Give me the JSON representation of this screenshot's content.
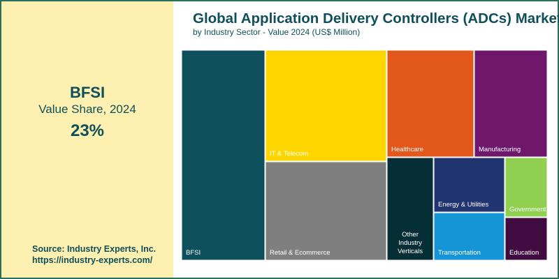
{
  "title": "Global Application Delivery Controllers (ADCs) Market",
  "subtitle": "by Industry Sector - Value 2024 (US$ Million)",
  "highlight": {
    "name": "BFSI",
    "caption": "Value Share, 2024",
    "value": "23%"
  },
  "source": {
    "line1": "Source: Industry Experts, Inc.",
    "line2": "https://industry-experts.com/"
  },
  "chart_data": {
    "type": "treemap",
    "title": "Global Application Delivery Controllers (ADCs) Market",
    "subtitle": "by Industry Sector - Value 2024 (US$ Million)",
    "items": [
      {
        "name": "BFSI",
        "color": "#0d4f5a"
      },
      {
        "name": "IT & Telecom",
        "color": "#fdd600"
      },
      {
        "name": "Retail & Ecommerce",
        "color": "#7f7f7f"
      },
      {
        "name": "Healthcare",
        "color": "#e2571a"
      },
      {
        "name": "Manufacturing",
        "color": "#6e176b"
      },
      {
        "name": "Other Industry Verticals",
        "color": "#052e36"
      },
      {
        "name": "Energy & Utilities",
        "color": "#203470"
      },
      {
        "name": "Transportation",
        "color": "#1594d6"
      },
      {
        "name": "Government",
        "color": "#8fd050"
      },
      {
        "name": "Education",
        "color": "#3f0b41"
      }
    ]
  }
}
